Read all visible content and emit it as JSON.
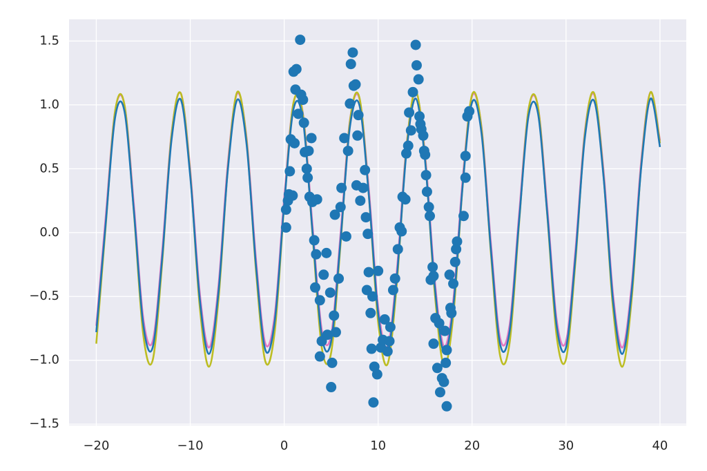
{
  "chart_data": [
    {
      "type": "line",
      "x": [
        -20,
        -19,
        -18,
        -17,
        -16,
        -15,
        -14,
        -13,
        -12,
        -11,
        -10,
        -9,
        -8,
        -7,
        -6,
        -5,
        -4,
        -3,
        -2,
        -1,
        0,
        1,
        2,
        3,
        4,
        5,
        6,
        7,
        8,
        9,
        10,
        11,
        12,
        13,
        14,
        15,
        16,
        17,
        18,
        19,
        20,
        21,
        22,
        23,
        24,
        25,
        26,
        27,
        28,
        29,
        30,
        31,
        32,
        33,
        34,
        35,
        36,
        37,
        38,
        39,
        40
      ],
      "series": [
        {
          "color": "#e377c2",
          "values": [
            -0.73,
            0.12,
            0.95,
            1.0,
            0.22,
            -0.67,
            -0.85,
            -0.16,
            0.77,
            1.09,
            0.49,
            -0.46,
            -0.9,
            -0.42,
            0.54,
            1.09,
            0.74,
            -0.21,
            -0.87,
            -0.64,
            0.27,
            1.02,
            0.93,
            0.07,
            -0.76,
            -0.8,
            -0.01,
            0.88,
            1.05,
            0.35,
            -0.58,
            -0.89,
            -0.29,
            0.67,
            1.1,
            0.61,
            -0.35,
            -0.89,
            -0.53,
            0.42,
            1.07,
            0.83,
            -0.08,
            -0.83,
            -0.72,
            0.14,
            0.96,
            0.99,
            0.2,
            -0.68,
            -0.85,
            -0.14,
            0.79,
            1.08,
            0.48,
            -0.48,
            -0.9,
            -0.4,
            0.56,
            1.1,
            0.72
          ]
        },
        {
          "color": "#bcbd22",
          "values": [
            -0.87,
            0.05,
            0.95,
            1.0,
            0.16,
            -0.8,
            -1.0,
            -0.25,
            0.76,
            1.09,
            0.46,
            -0.57,
            -1.05,
            -0.53,
            0.5,
            1.1,
            0.72,
            -0.3,
            -1.01,
            -0.77,
            0.21,
            1.02,
            0.92,
            0.0,
            -0.9,
            -0.94,
            -0.09,
            0.87,
            1.06,
            0.3,
            -0.7,
            -1.03,
            -0.39,
            0.65,
            1.11,
            0.58,
            -0.45,
            -1.04,
            -0.65,
            0.37,
            1.08,
            0.82,
            -0.16,
            -0.97,
            -0.86,
            0.07,
            0.96,
            0.99,
            0.14,
            -0.81,
            -0.99,
            -0.23,
            0.77,
            1.09,
            0.44,
            -0.59,
            -1.05,
            -0.51,
            0.52,
            1.1,
            0.7
          ]
        },
        {
          "color": "#1f77b4",
          "values": [
            -0.78,
            0.07,
            0.9,
            0.95,
            0.17,
            -0.72,
            -0.9,
            -0.21,
            0.72,
            1.04,
            0.44,
            -0.51,
            -0.95,
            -0.47,
            0.49,
            1.04,
            0.69,
            -0.26,
            -0.92,
            -0.69,
            0.22,
            0.97,
            0.88,
            0.02,
            -0.81,
            -0.85,
            -0.06,
            0.83,
            1.0,
            0.3,
            -0.63,
            -0.94,
            -0.34,
            0.62,
            1.05,
            0.56,
            -0.4,
            -0.94,
            -0.58,
            0.37,
            1.02,
            0.78,
            -0.13,
            -0.88,
            -0.77,
            0.09,
            0.91,
            0.94,
            0.15,
            -0.73,
            -0.9,
            -0.19,
            0.74,
            1.03,
            0.43,
            -0.53,
            -0.95,
            -0.45,
            0.51,
            1.05,
            0.67
          ]
        }
      ],
      "xlim": [
        -22.9,
        42.8
      ],
      "ylim": [
        -1.51,
        1.67
      ],
      "xticks": [
        {
          "value": -20,
          "label": "−20"
        },
        {
          "value": -10,
          "label": "−10"
        },
        0,
        10,
        20,
        30,
        40
      ],
      "yticks": [
        {
          "value": -1.5,
          "label": "−1.5"
        },
        {
          "value": -1.0,
          "label": "−1.0"
        },
        {
          "value": -0.5,
          "label": "−0.5"
        },
        {
          "value": 0.0,
          "label": "0.0"
        },
        0.5,
        {
          "value": 1.0,
          "label": "1.0"
        },
        1.5
      ],
      "grid": true
    },
    {
      "type": "scatter",
      "color": "#1f77b4",
      "x": [
        0.2,
        0.2,
        0.4,
        0.5,
        0.6,
        0.7,
        0.9,
        1.0,
        1.1,
        1.2,
        1.3,
        1.5,
        1.7,
        1.8,
        2.0,
        2.1,
        2.2,
        2.4,
        2.5,
        2.6,
        2.7,
        2.9,
        3.0,
        3.2,
        3.4,
        3.5,
        3.3,
        3.8,
        4.0,
        3.8,
        4.2,
        4.5,
        4.6,
        4.9,
        5.1,
        5.0,
        5.3,
        5.5,
        5.4,
        5.8,
        6.0,
        6.1,
        6.4,
        6.6,
        6.8,
        7.0,
        7.1,
        7.3,
        7.4,
        7.6,
        7.8,
        7.9,
        7.7,
        8.1,
        8.4,
        8.6,
        8.7,
        8.9,
        8.8,
        9.0,
        9.2,
        9.4,
        9.3,
        9.6,
        9.5,
        9.9,
        10.0,
        10.3,
        10.5,
        10.7,
        11.0,
        11.2,
        11.3,
        11.6,
        11.8,
        12.1,
        12.3,
        12.5,
        12.6,
        12.9,
        13.0,
        13.2,
        13.3,
        13.5,
        13.7,
        14.0,
        14.1,
        14.3,
        14.4,
        14.5,
        14.6,
        14.9,
        15.0,
        14.8,
        15.1,
        15.2,
        15.4,
        15.5,
        15.6,
        15.8,
        15.9,
        16.1,
        15.9,
        16.3,
        16.5,
        16.6,
        16.8,
        17.0,
        17.3,
        17.2,
        17.1,
        17.3,
        17.7,
        17.8,
        18.0,
        18.2,
        18.3,
        18.4,
        19.1,
        19.3,
        19.3,
        19.5,
        19.7,
        17.6
      ],
      "y": [
        0.04,
        0.18,
        0.25,
        0.3,
        0.48,
        0.73,
        0.29,
        1.26,
        0.7,
        1.12,
        1.28,
        0.93,
        1.51,
        1.08,
        1.04,
        0.86,
        0.63,
        0.5,
        0.43,
        0.64,
        0.28,
        0.74,
        0.24,
        -0.06,
        -0.17,
        0.26,
        -0.43,
        -0.53,
        -0.85,
        -0.97,
        -0.33,
        -0.16,
        -0.8,
        -0.47,
        -1.02,
        -1.21,
        -0.65,
        -0.78,
        0.14,
        -0.36,
        0.2,
        0.35,
        0.74,
        -0.03,
        0.64,
        1.01,
        1.32,
        1.41,
        1.15,
        1.16,
        0.76,
        0.92,
        0.37,
        0.25,
        0.35,
        0.49,
        0.12,
        -0.01,
        -0.45,
        -0.31,
        -0.63,
        -0.5,
        -0.91,
        -1.05,
        -1.33,
        -1.11,
        -0.3,
        -0.9,
        -0.84,
        -0.68,
        -0.93,
        -0.85,
        -0.74,
        -0.45,
        -0.36,
        -0.13,
        0.04,
        0.01,
        0.28,
        0.26,
        0.62,
        0.68,
        0.94,
        0.8,
        1.1,
        1.47,
        1.31,
        1.2,
        0.91,
        0.85,
        0.81,
        0.64,
        0.61,
        0.76,
        0.45,
        0.32,
        0.2,
        0.13,
        -0.37,
        -0.27,
        -0.34,
        -0.67,
        -0.87,
        -1.06,
        -0.71,
        -1.25,
        -1.14,
        -1.17,
        -0.92,
        -1.02,
        -0.77,
        -1.36,
        -0.59,
        -0.63,
        -0.4,
        -0.23,
        -0.13,
        -0.07,
        0.13,
        0.43,
        0.6,
        0.91,
        0.95,
        -0.33
      ]
    }
  ]
}
